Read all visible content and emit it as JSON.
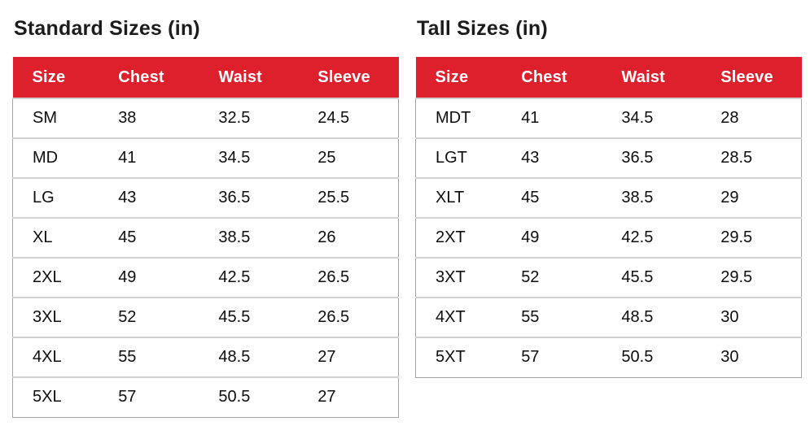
{
  "colors": {
    "header_bg": "#de202c",
    "header_text": "#ffffff",
    "row_border": "#d2d2d2",
    "outer_border": "#a3a3a3",
    "title_text": "#1c1c1c",
    "body_text": "#0d0d0d"
  },
  "tables": [
    {
      "title": "Standard Sizes (in)",
      "columns": [
        "Size",
        "Chest",
        "Waist",
        "Sleeve"
      ],
      "rows": [
        [
          "SM",
          "38",
          "32.5",
          "24.5"
        ],
        [
          "MD",
          "41",
          "34.5",
          "25"
        ],
        [
          "LG",
          "43",
          "36.5",
          "25.5"
        ],
        [
          "XL",
          "45",
          "38.5",
          "26"
        ],
        [
          "2XL",
          "49",
          "42.5",
          "26.5"
        ],
        [
          "3XL",
          "52",
          "45.5",
          "26.5"
        ],
        [
          "4XL",
          "55",
          "48.5",
          "27"
        ],
        [
          "5XL",
          "57",
          "50.5",
          "27"
        ]
      ]
    },
    {
      "title": "Tall Sizes (in)",
      "columns": [
        "Size",
        "Chest",
        "Waist",
        "Sleeve"
      ],
      "rows": [
        [
          "MDT",
          "41",
          "34.5",
          "28"
        ],
        [
          "LGT",
          "43",
          "36.5",
          "28.5"
        ],
        [
          "XLT",
          "45",
          "38.5",
          "29"
        ],
        [
          "2XT",
          "49",
          "42.5",
          "29.5"
        ],
        [
          "3XT",
          "52",
          "45.5",
          "29.5"
        ],
        [
          "4XT",
          "55",
          "48.5",
          "30"
        ],
        [
          "5XT",
          "57",
          "50.5",
          "30"
        ]
      ]
    }
  ]
}
